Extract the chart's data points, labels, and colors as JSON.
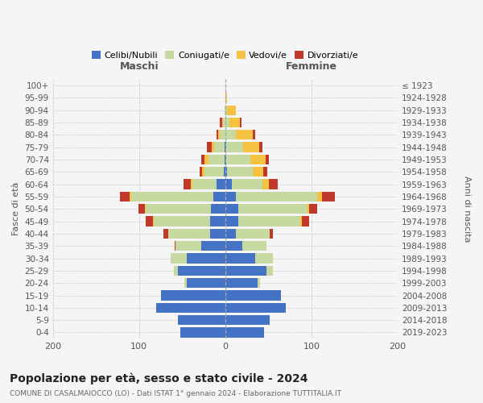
{
  "age_groups": [
    "0-4",
    "5-9",
    "10-14",
    "15-19",
    "20-24",
    "25-29",
    "30-34",
    "35-39",
    "40-44",
    "45-49",
    "50-54",
    "55-59",
    "60-64",
    "65-69",
    "70-74",
    "75-79",
    "80-84",
    "85-89",
    "90-94",
    "95-99",
    "100+"
  ],
  "birth_years": [
    "2019-2023",
    "2014-2018",
    "2009-2013",
    "2004-2008",
    "1999-2003",
    "1994-1998",
    "1989-1993",
    "1984-1988",
    "1979-1983",
    "1974-1978",
    "1969-1973",
    "1964-1968",
    "1959-1963",
    "1954-1958",
    "1949-1953",
    "1944-1948",
    "1939-1943",
    "1934-1938",
    "1929-1933",
    "1924-1928",
    "≤ 1923"
  ],
  "maschi": {
    "celibi": [
      52,
      55,
      80,
      75,
      45,
      55,
      45,
      28,
      18,
      18,
      17,
      14,
      10,
      2,
      1,
      1,
      0,
      0,
      0,
      0,
      0
    ],
    "coniugati": [
      0,
      0,
      0,
      0,
      2,
      5,
      18,
      30,
      48,
      65,
      75,
      95,
      28,
      22,
      18,
      12,
      6,
      3,
      1,
      0,
      0
    ],
    "vedovi": [
      0,
      0,
      0,
      0,
      0,
      0,
      0,
      0,
      0,
      1,
      1,
      2,
      2,
      3,
      5,
      3,
      2,
      1,
      0,
      0,
      0
    ],
    "divorziati": [
      0,
      0,
      0,
      0,
      0,
      0,
      0,
      1,
      6,
      8,
      8,
      11,
      8,
      3,
      4,
      5,
      2,
      2,
      0,
      0,
      0
    ]
  },
  "femmine": {
    "nubili": [
      45,
      52,
      70,
      65,
      38,
      48,
      35,
      20,
      12,
      15,
      15,
      12,
      8,
      2,
      1,
      1,
      0,
      0,
      0,
      0,
      0
    ],
    "coniugate": [
      0,
      0,
      0,
      0,
      2,
      7,
      20,
      28,
      40,
      72,
      80,
      95,
      35,
      30,
      28,
      20,
      12,
      5,
      2,
      0,
      0
    ],
    "vedove": [
      0,
      0,
      0,
      0,
      0,
      0,
      0,
      0,
      0,
      2,
      2,
      5,
      8,
      12,
      18,
      18,
      20,
      12,
      10,
      2,
      0
    ],
    "divorziate": [
      0,
      0,
      0,
      0,
      0,
      0,
      0,
      0,
      3,
      8,
      10,
      15,
      10,
      5,
      4,
      4,
      3,
      2,
      0,
      0,
      0
    ]
  },
  "colors": {
    "celibi_nubili": "#4472c4",
    "coniugati": "#c5d9a0",
    "vedovi": "#f5c242",
    "divorziati": "#c0392b"
  },
  "xlim": 200,
  "title": "Popolazione per età, sesso e stato civile - 2024",
  "subtitle": "COMUNE DI CASALMAIOCCO (LO) - Dati ISTAT 1° gennaio 2024 - Elaborazione TUTTITALIA.IT",
  "ylabel_left": "Fasce di età",
  "ylabel_right": "Anni di nascita",
  "xlabel_maschi": "Maschi",
  "xlabel_femmine": "Femmine",
  "bg_color": "#f5f5f5",
  "grid_color": "#cccccc"
}
